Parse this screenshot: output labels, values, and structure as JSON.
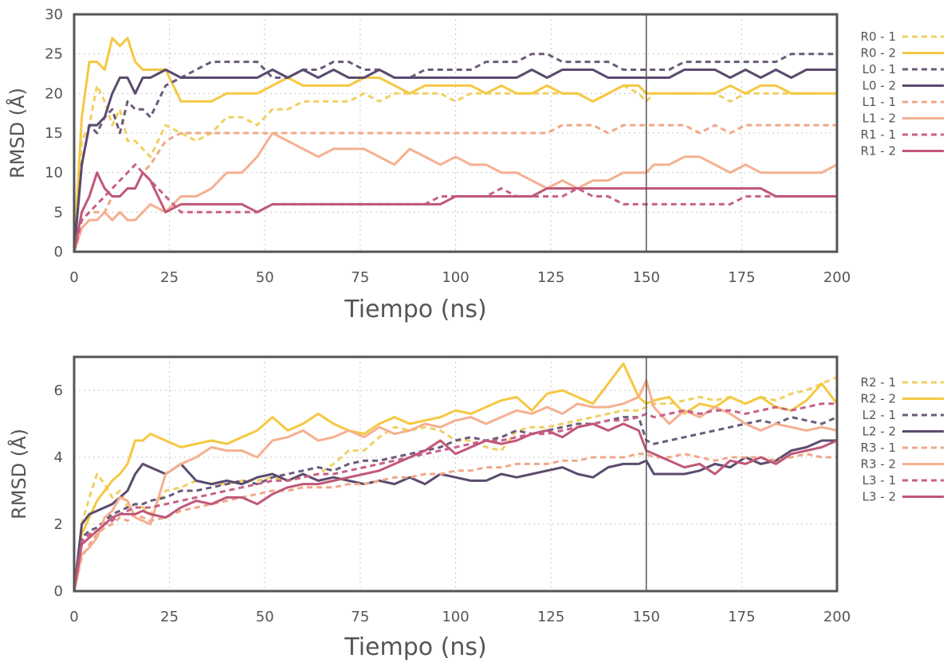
{
  "chart_data": [
    {
      "type": "line",
      "xlabel": "Tiempo (ns)",
      "ylabel": "RMSD (Å)",
      "xlim": [
        0,
        200
      ],
      "ylim": [
        0,
        30
      ],
      "xticks": [
        "0",
        "25",
        "50",
        "75",
        "100",
        "125",
        "150",
        "175",
        "200"
      ],
      "yticks": [
        "0",
        "5",
        "10",
        "15",
        "20",
        "25",
        "30"
      ],
      "vline_x": 150,
      "grid": true,
      "legend_position": "right",
      "x": [
        0,
        2,
        4,
        6,
        8,
        10,
        12,
        14,
        16,
        18,
        20,
        24,
        28,
        32,
        36,
        40,
        44,
        48,
        52,
        56,
        60,
        64,
        68,
        72,
        76,
        80,
        84,
        88,
        92,
        96,
        100,
        104,
        108,
        112,
        116,
        120,
        124,
        128,
        132,
        136,
        140,
        144,
        148,
        150,
        152,
        156,
        160,
        164,
        168,
        172,
        176,
        180,
        184,
        188,
        192,
        196,
        200
      ],
      "series": [
        {
          "name": "R0 - 1",
          "color": "#f0d060",
          "dash": "dash",
          "values": [
            0,
            14,
            16,
            21,
            19,
            16,
            18,
            14,
            14,
            13,
            12,
            16,
            15,
            14,
            15,
            17,
            17,
            16,
            18,
            18,
            19,
            19,
            19,
            19,
            20,
            19,
            20,
            20,
            20,
            20,
            19,
            20,
            20,
            20,
            20,
            20,
            20,
            20,
            20,
            19,
            20,
            21,
            20,
            19,
            20,
            20,
            20,
            20,
            20,
            19,
            20,
            20,
            20,
            20,
            20,
            20,
            20
          ]
        },
        {
          "name": "R0 - 2",
          "color": "#f5c842",
          "dash": "solid",
          "values": [
            0,
            17,
            24,
            24,
            23,
            27,
            26,
            27,
            24,
            23,
            23,
            23,
            19,
            19,
            19,
            20,
            20,
            20,
            21,
            22,
            21,
            21,
            21,
            21,
            22,
            22,
            21,
            20,
            21,
            21,
            21,
            21,
            20,
            21,
            20,
            20,
            21,
            20,
            20,
            19,
            20,
            21,
            21,
            20,
            20,
            20,
            20,
            20,
            20,
            21,
            20,
            21,
            21,
            20,
            20,
            20,
            20
          ]
        },
        {
          "name": "L0 - 1",
          "color": "#6b5b7b",
          "dash": "dash",
          "values": [
            0,
            11,
            16,
            15,
            17,
            18,
            15,
            19,
            18,
            18,
            17,
            21,
            22,
            23,
            24,
            24,
            24,
            24,
            22,
            22,
            23,
            23,
            24,
            24,
            23,
            23,
            22,
            22,
            23,
            23,
            23,
            23,
            24,
            24,
            24,
            25,
            25,
            24,
            24,
            24,
            24,
            23,
            23,
            23,
            23,
            23,
            24,
            24,
            24,
            24,
            24,
            24,
            24,
            25,
            25,
            25,
            25
          ]
        },
        {
          "name": "L0 - 2",
          "color": "#5b4b6e",
          "dash": "solid",
          "values": [
            0,
            11,
            16,
            16,
            17,
            20,
            22,
            22,
            20,
            22,
            22,
            23,
            22,
            22,
            22,
            22,
            22,
            22,
            23,
            22,
            23,
            22,
            23,
            22,
            22,
            23,
            22,
            22,
            22,
            22,
            22,
            22,
            22,
            22,
            22,
            23,
            22,
            23,
            23,
            23,
            22,
            22,
            22,
            22,
            22,
            22,
            23,
            23,
            23,
            22,
            23,
            22,
            23,
            22,
            23,
            23,
            23
          ]
        },
        {
          "name": "L1 - 1",
          "color": "#f0a888",
          "dash": "dash",
          "values": [
            0,
            4,
            5,
            5,
            5,
            7,
            7,
            8,
            8,
            10,
            11,
            14,
            15,
            15,
            15,
            15,
            15,
            15,
            15,
            15,
            15,
            15,
            15,
            15,
            15,
            15,
            15,
            15,
            15,
            15,
            15,
            15,
            15,
            15,
            15,
            15,
            15,
            16,
            16,
            16,
            15,
            16,
            16,
            16,
            16,
            16,
            16,
            15,
            16,
            15,
            16,
            16,
            16,
            16,
            16,
            16,
            16
          ]
        },
        {
          "name": "L1 - 2",
          "color": "#f5b090",
          "dash": "solid",
          "values": [
            0,
            3,
            4,
            4,
            5,
            4,
            5,
            4,
            4,
            5,
            6,
            5,
            7,
            7,
            8,
            10,
            10,
            12,
            15,
            14,
            13,
            12,
            13,
            13,
            13,
            12,
            11,
            13,
            12,
            11,
            12,
            11,
            11,
            10,
            10,
            9,
            8,
            9,
            8,
            9,
            9,
            10,
            10,
            10,
            11,
            11,
            12,
            12,
            11,
            10,
            11,
            10,
            10,
            10,
            10,
            10,
            11
          ]
        },
        {
          "name": "R1 - 1",
          "color": "#c8608a",
          "dash": "dash",
          "values": [
            0,
            4,
            5,
            6,
            7,
            8,
            9,
            10,
            11,
            10,
            9,
            7,
            5,
            5,
            5,
            5,
            5,
            5,
            6,
            6,
            6,
            6,
            6,
            6,
            6,
            6,
            6,
            6,
            6,
            7,
            7,
            7,
            7,
            8,
            7,
            7,
            7,
            7,
            8,
            7,
            7,
            6,
            6,
            6,
            6,
            6,
            6,
            6,
            6,
            6,
            7,
            7,
            7,
            7,
            7,
            7,
            7
          ]
        },
        {
          "name": "R1 - 2",
          "color": "#c05878",
          "dash": "solid",
          "values": [
            0,
            5,
            7,
            10,
            8,
            7,
            7,
            8,
            8,
            10,
            9,
            5,
            6,
            6,
            6,
            6,
            6,
            5,
            6,
            6,
            6,
            6,
            6,
            6,
            6,
            6,
            6,
            6,
            6,
            6,
            7,
            7,
            7,
            7,
            7,
            7,
            8,
            8,
            8,
            8,
            8,
            8,
            8,
            8,
            8,
            8,
            8,
            8,
            8,
            8,
            8,
            8,
            7,
            7,
            7,
            7,
            7
          ]
        }
      ]
    },
    {
      "type": "line",
      "xlabel": "Tiempo (ns)",
      "ylabel": "RMSD (Å)",
      "xlim": [
        0,
        200
      ],
      "ylim": [
        0,
        7
      ],
      "xticks": [
        "0",
        "25",
        "50",
        "75",
        "100",
        "125",
        "150",
        "175",
        "200"
      ],
      "yticks": [
        "0",
        "2",
        "4",
        "6"
      ],
      "vline_x": 150,
      "grid": true,
      "legend_position": "right",
      "x": [
        0,
        2,
        4,
        6,
        8,
        10,
        12,
        14,
        16,
        18,
        20,
        24,
        28,
        32,
        36,
        40,
        44,
        48,
        52,
        56,
        60,
        64,
        68,
        72,
        76,
        80,
        84,
        88,
        92,
        96,
        100,
        104,
        108,
        112,
        116,
        120,
        124,
        128,
        132,
        136,
        140,
        144,
        148,
        150,
        152,
        156,
        160,
        164,
        168,
        172,
        176,
        180,
        184,
        188,
        192,
        196,
        200
      ],
      "series": [
        {
          "name": "R2 - 1",
          "color": "#f0d060",
          "dash": "dash",
          "values": [
            0,
            2.0,
            2.8,
            3.5,
            3.2,
            2.8,
            3.0,
            2.5,
            2.6,
            2.5,
            2.3,
            3.0,
            3.1,
            3.3,
            3.2,
            3.2,
            3.3,
            3.3,
            3.4,
            3.3,
            3.4,
            3.5,
            3.8,
            4.2,
            4.2,
            4.6,
            4.9,
            4.8,
            4.9,
            4.8,
            4.5,
            4.5,
            4.3,
            4.2,
            4.8,
            4.9,
            4.9,
            5.0,
            5.1,
            5.2,
            5.3,
            5.4,
            5.4,
            5.5,
            5.6,
            5.6,
            5.7,
            5.8,
            5.7,
            5.8,
            5.6,
            5.8,
            5.7,
            5.9,
            6.0,
            6.2,
            6.4
          ]
        },
        {
          "name": "R2 - 2",
          "color": "#f5c842",
          "dash": "solid",
          "values": [
            0,
            1.7,
            2.2,
            2.7,
            3.0,
            3.3,
            3.5,
            3.8,
            4.5,
            4.5,
            4.7,
            4.5,
            4.3,
            4.4,
            4.5,
            4.4,
            4.6,
            4.8,
            5.2,
            4.8,
            5.0,
            5.3,
            5.0,
            4.8,
            4.7,
            5.0,
            5.2,
            5.0,
            5.1,
            5.2,
            5.4,
            5.3,
            5.5,
            5.7,
            5.8,
            5.4,
            5.9,
            6.0,
            5.8,
            5.6,
            6.2,
            6.8,
            5.8,
            5.6,
            5.7,
            5.8,
            5.3,
            5.6,
            5.5,
            5.8,
            5.6,
            5.8,
            5.5,
            5.4,
            5.7,
            6.2,
            5.6
          ]
        },
        {
          "name": "L2 - 1",
          "color": "#6b5b7b",
          "dash": "dash",
          "values": [
            0,
            1.6,
            1.8,
            1.9,
            2.1,
            2.3,
            2.4,
            2.5,
            2.6,
            2.6,
            2.7,
            2.8,
            3.0,
            3.0,
            3.1,
            3.2,
            3.3,
            3.2,
            3.4,
            3.5,
            3.6,
            3.7,
            3.6,
            3.8,
            3.9,
            3.9,
            4.0,
            4.1,
            4.2,
            4.3,
            4.5,
            4.6,
            4.5,
            4.6,
            4.8,
            4.7,
            4.8,
            4.9,
            5.0,
            5.0,
            5.1,
            5.2,
            5.2,
            4.5,
            4.4,
            4.5,
            4.6,
            4.7,
            4.8,
            4.9,
            5.0,
            5.1,
            5.0,
            5.2,
            5.1,
            5.0,
            5.2
          ]
        },
        {
          "name": "L2 - 2",
          "color": "#5b4b6e",
          "dash": "solid",
          "values": [
            0,
            2.0,
            2.3,
            2.4,
            2.5,
            2.6,
            2.8,
            3.0,
            3.5,
            3.8,
            3.7,
            3.5,
            3.8,
            3.3,
            3.2,
            3.3,
            3.2,
            3.4,
            3.5,
            3.3,
            3.5,
            3.3,
            3.4,
            3.3,
            3.2,
            3.3,
            3.2,
            3.4,
            3.2,
            3.5,
            3.4,
            3.3,
            3.3,
            3.5,
            3.4,
            3.5,
            3.6,
            3.7,
            3.5,
            3.4,
            3.7,
            3.8,
            3.8,
            3.9,
            3.5,
            3.5,
            3.5,
            3.6,
            3.8,
            3.7,
            4.0,
            3.8,
            3.9,
            4.2,
            4.3,
            4.5,
            4.5
          ]
        },
        {
          "name": "R3 - 1",
          "color": "#f0a888",
          "dash": "dash",
          "values": [
            0,
            1.0,
            1.4,
            1.7,
            1.9,
            2.0,
            2.2,
            2.1,
            2.3,
            2.2,
            2.1,
            2.2,
            2.4,
            2.5,
            2.6,
            2.7,
            2.8,
            2.9,
            3.0,
            3.0,
            3.1,
            3.1,
            3.1,
            3.2,
            3.2,
            3.3,
            3.4,
            3.4,
            3.5,
            3.5,
            3.6,
            3.6,
            3.7,
            3.7,
            3.8,
            3.8,
            3.8,
            3.9,
            3.9,
            4.0,
            4.0,
            4.0,
            4.1,
            4.1,
            4.0,
            4.0,
            4.1,
            4.0,
            3.9,
            4.0,
            4.0,
            4.0,
            3.9,
            4.0,
            4.1,
            4.0,
            4.0
          ]
        },
        {
          "name": "R3 - 2",
          "color": "#f5b090",
          "dash": "solid",
          "values": [
            0,
            1.1,
            1.3,
            1.6,
            2.2,
            2.4,
            2.8,
            2.7,
            2.2,
            2.1,
            2.0,
            3.5,
            3.8,
            4.0,
            4.3,
            4.2,
            4.2,
            4.0,
            4.5,
            4.6,
            4.8,
            4.5,
            4.6,
            4.8,
            4.6,
            4.9,
            4.7,
            4.8,
            5.0,
            4.9,
            5.1,
            5.2,
            5.0,
            5.2,
            5.4,
            5.3,
            5.5,
            5.3,
            5.6,
            5.5,
            5.5,
            5.6,
            5.8,
            6.3,
            5.5,
            5.0,
            5.4,
            5.2,
            5.5,
            5.3,
            5.0,
            4.8,
            5.0,
            4.9,
            4.8,
            4.9,
            4.8
          ]
        },
        {
          "name": "L3 - 1",
          "color": "#c8608a",
          "dash": "dash",
          "values": [
            0,
            1.5,
            1.7,
            1.8,
            2.0,
            2.1,
            2.3,
            2.4,
            2.5,
            2.5,
            2.5,
            2.6,
            2.7,
            2.8,
            2.9,
            3.0,
            3.1,
            3.2,
            3.3,
            3.3,
            3.4,
            3.5,
            3.5,
            3.6,
            3.7,
            3.8,
            3.9,
            4.0,
            4.1,
            4.2,
            4.3,
            4.4,
            4.5,
            4.5,
            4.6,
            4.7,
            4.7,
            4.8,
            4.9,
            5.0,
            5.1,
            5.1,
            5.2,
            5.3,
            5.2,
            5.3,
            5.4,
            5.3,
            5.4,
            5.4,
            5.3,
            5.4,
            5.5,
            5.4,
            5.5,
            5.6,
            5.6
          ]
        },
        {
          "name": "L3 - 2",
          "color": "#c05878",
          "dash": "solid",
          "values": [
            0,
            1.4,
            1.6,
            1.8,
            2.0,
            2.2,
            2.3,
            2.3,
            2.3,
            2.4,
            2.3,
            2.2,
            2.5,
            2.7,
            2.6,
            2.8,
            2.8,
            2.6,
            2.9,
            3.1,
            3.2,
            3.2,
            3.3,
            3.4,
            3.5,
            3.6,
            3.8,
            4.0,
            4.2,
            4.5,
            4.1,
            4.3,
            4.5,
            4.4,
            4.5,
            4.7,
            4.8,
            4.6,
            4.9,
            5.0,
            4.8,
            5.0,
            4.8,
            4.2,
            4.1,
            3.9,
            3.7,
            3.8,
            3.5,
            3.9,
            3.8,
            4.0,
            3.8,
            4.1,
            4.2,
            4.3,
            4.5
          ]
        }
      ]
    }
  ]
}
